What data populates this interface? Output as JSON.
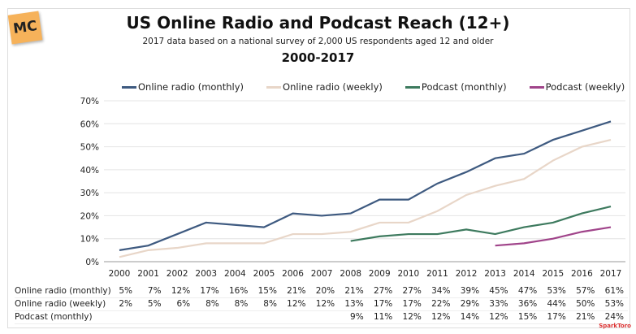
{
  "logo": "MC",
  "watermark": "SparkToro",
  "chart_data": {
    "type": "line",
    "title": "US Online Radio and Podcast Reach (12+)",
    "subtitle": "2017 data based on a national survey of 2,000 US respondents aged 12 and older",
    "subtitle2": "2000-2017",
    "x": [
      "2000",
      "2001",
      "2002",
      "2003",
      "2004",
      "2005",
      "2006",
      "2007",
      "2008",
      "2009",
      "2010",
      "2011",
      "2012",
      "2013",
      "2014",
      "2015",
      "2016",
      "2017"
    ],
    "ylim": [
      0,
      70
    ],
    "yticks": [
      "0%",
      "10%",
      "20%",
      "30%",
      "40%",
      "50%",
      "60%",
      "70%"
    ],
    "grid": true,
    "legend": "top",
    "series": [
      {
        "name": "Online radio (monthly)",
        "color": "#3e5a80",
        "values": [
          5,
          7,
          12,
          17,
          16,
          15,
          21,
          20,
          21,
          27,
          27,
          34,
          39,
          45,
          47,
          53,
          57,
          61
        ],
        "table": true
      },
      {
        "name": "Online radio (weekly)",
        "color": "#e8d6c8",
        "values": [
          2,
          5,
          6,
          8,
          8,
          8,
          12,
          12,
          13,
          17,
          17,
          22,
          29,
          33,
          36,
          44,
          50,
          53
        ],
        "table": true
      },
      {
        "name": "Podcast (monthly)",
        "color": "#3d7a5e",
        "values": [
          null,
          null,
          null,
          null,
          null,
          null,
          null,
          null,
          9,
          11,
          12,
          12,
          14,
          12,
          15,
          17,
          21,
          24
        ],
        "table": true
      },
      {
        "name": "Podcast (weekly)",
        "color": "#a0448a",
        "values": [
          null,
          null,
          null,
          null,
          null,
          null,
          null,
          null,
          null,
          null,
          null,
          null,
          null,
          7,
          8,
          10,
          13,
          15
        ],
        "table": false
      }
    ]
  }
}
